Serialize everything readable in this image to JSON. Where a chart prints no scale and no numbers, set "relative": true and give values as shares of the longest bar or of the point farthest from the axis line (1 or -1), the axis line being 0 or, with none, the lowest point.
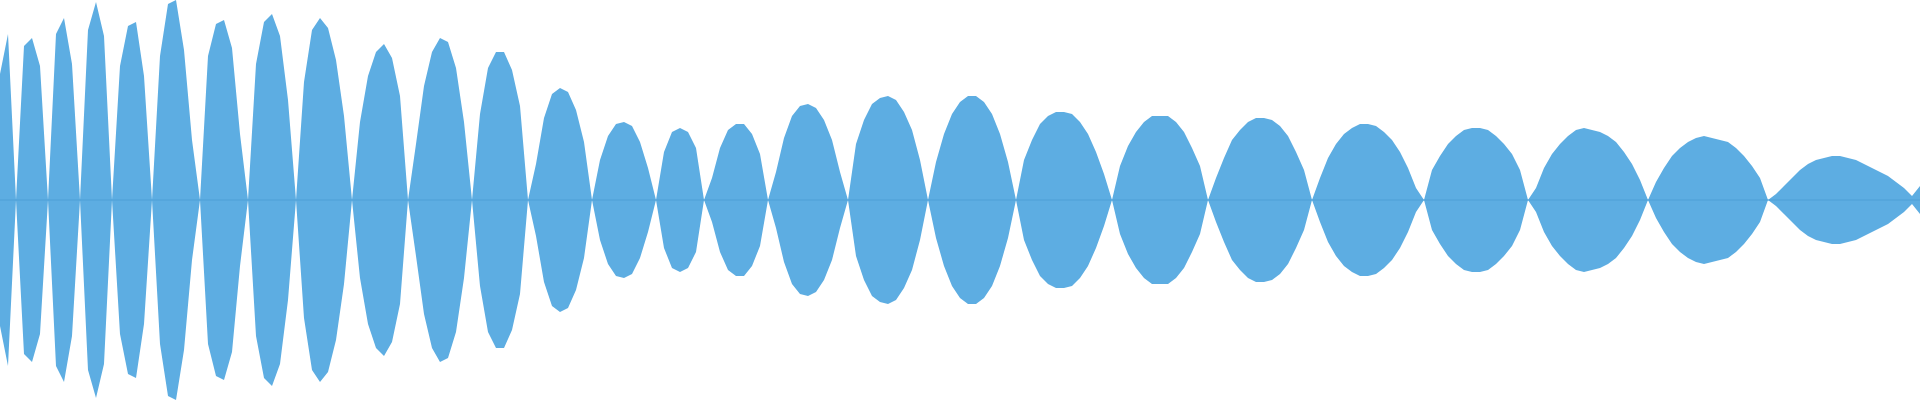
{
  "chart_data": {
    "type": "area",
    "relative": true,
    "categories": [
      null,
      null,
      null,
      null,
      null,
      null,
      null,
      null,
      null,
      null,
      null,
      null,
      null,
      null,
      null,
      null,
      null,
      null,
      null,
      null,
      null,
      null,
      null,
      null,
      null,
      null,
      null,
      null,
      null,
      null,
      null,
      null,
      null,
      null,
      null,
      null,
      null,
      null,
      null,
      null,
      null,
      null,
      null,
      null,
      null,
      null,
      null,
      null,
      null,
      null,
      null,
      null,
      null,
      null,
      null,
      null,
      null,
      null,
      null,
      null,
      null,
      null,
      null,
      null,
      null,
      null,
      null,
      null,
      null,
      null,
      null,
      null,
      null,
      null,
      null,
      null,
      null,
      null,
      null,
      null,
      null,
      null,
      null,
      null,
      null,
      null,
      null,
      null,
      null,
      null,
      null,
      null,
      null,
      null,
      null,
      null,
      null,
      null,
      null,
      null,
      null,
      null,
      null,
      null,
      null,
      null,
      null,
      null,
      null,
      null,
      null,
      null,
      null,
      null,
      null,
      null,
      null,
      null,
      null,
      null,
      null,
      null,
      null,
      null,
      null,
      null,
      null,
      null,
      null,
      null,
      null,
      null,
      null,
      null,
      null,
      null,
      null,
      null,
      null,
      null,
      null,
      null,
      null,
      null,
      null,
      null,
      null,
      null,
      null,
      null,
      null,
      null,
      null,
      null,
      null,
      null,
      null,
      null,
      null,
      null,
      null,
      null,
      null,
      null,
      null,
      null,
      null,
      null,
      null,
      null,
      null,
      null,
      null,
      null,
      null,
      null,
      null,
      null,
      null,
      null,
      null,
      null,
      null,
      null,
      null,
      null,
      null,
      null,
      null,
      null,
      null,
      null,
      null,
      null,
      null,
      null,
      null,
      null,
      null,
      null,
      null,
      null,
      null,
      null,
      null,
      null,
      null,
      null,
      null,
      null,
      null,
      null,
      null,
      null,
      null,
      null,
      null,
      null,
      null,
      null,
      null,
      null,
      null,
      null,
      null,
      null,
      null,
      null,
      null,
      null,
      null,
      null,
      null,
      null,
      null,
      null,
      null,
      null,
      null,
      null,
      null
    ],
    "series": [
      {
        "color": "#5dade2",
        "values": [
          0.63,
          0.83,
          0,
          0.77,
          0.81,
          0.67,
          0,
          0.83,
          0.91,
          0.68,
          0,
          0.85,
          0.99,
          0.82,
          0,
          0.67,
          0.87,
          0.89,
          0.62,
          0,
          0.72,
          0.98,
          1,
          0.75,
          0.3,
          0,
          0.72,
          0.88,
          0.9,
          0.76,
          0.33,
          0,
          0.68,
          0.89,
          0.93,
          0.82,
          0.5,
          0,
          0.59,
          0.85,
          0.91,
          0.86,
          0.7,
          0.42,
          0,
          0.39,
          0.62,
          0.74,
          0.78,
          0.71,
          0.52,
          0,
          0.28,
          0.57,
          0.74,
          0.81,
          0.79,
          0.66,
          0.39,
          0,
          0.43,
          0.66,
          0.74,
          0.74,
          0.65,
          0.47,
          0,
          0.18,
          0.41,
          0.53,
          0.56,
          0.54,
          0.45,
          0.29,
          0,
          0.2,
          0.32,
          0.38,
          0.39,
          0.37,
          0.29,
          0.16,
          0,
          0.24,
          0.34,
          0.36,
          0.34,
          0.26,
          0,
          0.11,
          0.26,
          0.35,
          0.38,
          0.38,
          0.33,
          0.23,
          0,
          0.14,
          0.31,
          0.42,
          0.47,
          0.48,
          0.46,
          0.4,
          0.3,
          0.14,
          0,
          0.28,
          0.4,
          0.48,
          0.51,
          0.52,
          0.5,
          0.44,
          0.35,
          0.2,
          0,
          0.19,
          0.33,
          0.43,
          0.49,
          0.52,
          0.52,
          0.49,
          0.43,
          0.33,
          0.19,
          0,
          0.2,
          0.3,
          0.38,
          0.42,
          0.44,
          0.44,
          0.43,
          0.39,
          0.33,
          0.24,
          0.13,
          0,
          0.17,
          0.27,
          0.34,
          0.39,
          0.42,
          0.42,
          0.42,
          0.39,
          0.34,
          0.26,
          0.17,
          0,
          0.11,
          0.21,
          0.3,
          0.35,
          0.39,
          0.41,
          0.41,
          0.4,
          0.37,
          0.32,
          0.24,
          0.15,
          0,
          0.11,
          0.21,
          0.28,
          0.33,
          0.36,
          0.38,
          0.38,
          0.37,
          0.34,
          0.3,
          0.24,
          0.16,
          0.06,
          0,
          0.15,
          0.22,
          0.28,
          0.32,
          0.35,
          0.36,
          0.36,
          0.35,
          0.32,
          0.28,
          0.23,
          0.15,
          0,
          0.06,
          0.16,
          0.23,
          0.28,
          0.32,
          0.35,
          0.36,
          0.35,
          0.34,
          0.32,
          0.29,
          0.24,
          0.18,
          0.1,
          0,
          0.09,
          0.16,
          0.22,
          0.26,
          0.29,
          0.31,
          0.32,
          0.31,
          0.3,
          0.29,
          0.26,
          0.22,
          0.17,
          0.11,
          0,
          0.03,
          0.07,
          0.11,
          0.15,
          0.18,
          0.2,
          0.21,
          0.22,
          0.22,
          0.21,
          0.2,
          0.18,
          0.16,
          0.14,
          0.12,
          0.09,
          0.06,
          0.02,
          0.07
        ]
      },
      {
        "color": "#5dade2",
        "values": [
          -0.63,
          -0.83,
          0,
          -0.77,
          -0.81,
          -0.67,
          0,
          -0.83,
          -0.91,
          -0.68,
          0,
          -0.85,
          -0.99,
          -0.82,
          0,
          -0.67,
          -0.87,
          -0.89,
          -0.62,
          0,
          -0.72,
          -0.98,
          -1,
          -0.75,
          -0.3,
          0,
          -0.72,
          -0.88,
          -0.9,
          -0.76,
          -0.33,
          0,
          -0.68,
          -0.89,
          -0.93,
          -0.82,
          -0.5,
          0,
          -0.59,
          -0.85,
          -0.91,
          -0.86,
          -0.7,
          -0.42,
          0,
          -0.39,
          -0.62,
          -0.74,
          -0.78,
          -0.71,
          -0.52,
          0,
          -0.28,
          -0.57,
          -0.74,
          -0.81,
          -0.79,
          -0.66,
          -0.39,
          0,
          -0.43,
          -0.66,
          -0.74,
          -0.74,
          -0.65,
          -0.47,
          0,
          -0.18,
          -0.41,
          -0.53,
          -0.56,
          -0.54,
          -0.45,
          -0.29,
          0,
          -0.2,
          -0.32,
          -0.38,
          -0.39,
          -0.37,
          -0.29,
          -0.16,
          0,
          -0.24,
          -0.34,
          -0.36,
          -0.34,
          -0.26,
          0,
          -0.11,
          -0.26,
          -0.35,
          -0.38,
          -0.38,
          -0.33,
          -0.23,
          0,
          -0.14,
          -0.31,
          -0.42,
          -0.47,
          -0.48,
          -0.46,
          -0.4,
          -0.3,
          -0.14,
          0,
          -0.28,
          -0.4,
          -0.48,
          -0.51,
          -0.52,
          -0.5,
          -0.44,
          -0.35,
          -0.2,
          0,
          -0.19,
          -0.33,
          -0.43,
          -0.49,
          -0.52,
          -0.52,
          -0.49,
          -0.43,
          -0.33,
          -0.19,
          0,
          -0.2,
          -0.3,
          -0.38,
          -0.42,
          -0.44,
          -0.44,
          -0.43,
          -0.39,
          -0.33,
          -0.24,
          -0.13,
          0,
          -0.17,
          -0.27,
          -0.34,
          -0.39,
          -0.42,
          -0.42,
          -0.42,
          -0.39,
          -0.34,
          -0.26,
          -0.17,
          0,
          -0.11,
          -0.21,
          -0.3,
          -0.35,
          -0.39,
          -0.41,
          -0.41,
          -0.4,
          -0.37,
          -0.32,
          -0.24,
          -0.15,
          0,
          -0.11,
          -0.21,
          -0.28,
          -0.33,
          -0.36,
          -0.38,
          -0.38,
          -0.37,
          -0.34,
          -0.3,
          -0.24,
          -0.16,
          -0.06,
          0,
          -0.15,
          -0.22,
          -0.28,
          -0.32,
          -0.35,
          -0.36,
          -0.36,
          -0.35,
          -0.32,
          -0.28,
          -0.23,
          -0.15,
          0,
          -0.06,
          -0.16,
          -0.23,
          -0.28,
          -0.32,
          -0.35,
          -0.36,
          -0.35,
          -0.34,
          -0.32,
          -0.29,
          -0.24,
          -0.18,
          -0.1,
          0,
          -0.09,
          -0.16,
          -0.22,
          -0.26,
          -0.29,
          -0.31,
          -0.32,
          -0.31,
          -0.3,
          -0.29,
          -0.26,
          -0.22,
          -0.17,
          -0.11,
          0,
          -0.03,
          -0.07,
          -0.11,
          -0.15,
          -0.18,
          -0.2,
          -0.21,
          -0.22,
          -0.22,
          -0.21,
          -0.2,
          -0.18,
          -0.16,
          -0.14,
          -0.12,
          -0.09,
          -0.06,
          -0.02,
          -0.07
        ]
      }
    ],
    "ref_lines": [
      {
        "axis": "y",
        "value": 0,
        "color": "#4f9fd6"
      }
    ]
  }
}
